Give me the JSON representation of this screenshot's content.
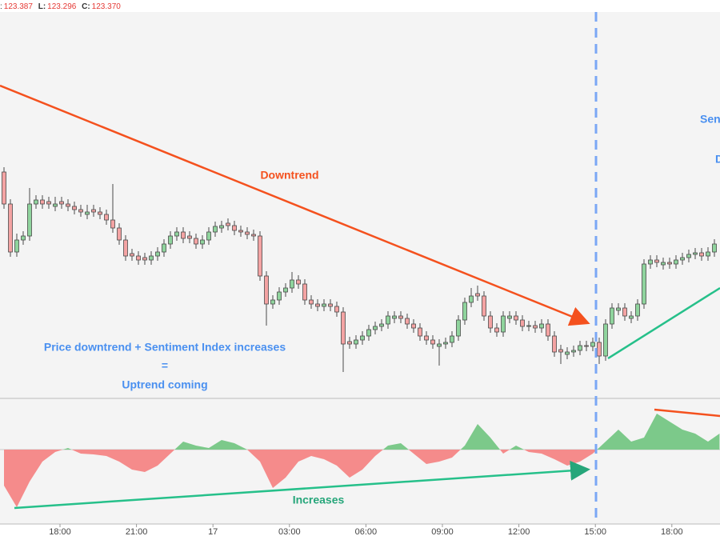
{
  "header": {
    "lead": ":",
    "h_value": "123.387",
    "l_label": "L:",
    "l_value": "123.296",
    "c_label": "C:",
    "c_value": "123.370"
  },
  "chart_data": {
    "type": "candlestick",
    "xlim": [
      -0.625,
      111.875
    ],
    "ylim": [
      0,
      482
    ],
    "y2lim": [
      -93,
      64
    ],
    "xticks": [
      {
        "value": 8.75,
        "label": "18:00"
      },
      {
        "value": 20.7,
        "label": "21:00"
      },
      {
        "value": 32.65,
        "label": "17"
      },
      {
        "value": 44.6,
        "label": "03:00"
      },
      {
        "value": 56.55,
        "label": "06:00"
      },
      {
        "value": 68.5,
        "label": "09:00"
      },
      {
        "value": 80.45,
        "label": "12:00"
      },
      {
        "value": 92.4,
        "label": "15:00"
      },
      {
        "value": 104.35,
        "label": "18:00"
      }
    ],
    "up_color": "#8fd49d",
    "down_color": "#f4a3a3",
    "edge_color": "#4a4a4a",
    "open": [
      282,
      242,
      182,
      197,
      202,
      242,
      247,
      245,
      239,
      245,
      242,
      239,
      235,
      229,
      235,
      232,
      229,
      222,
      212,
      197,
      180,
      177,
      175,
      172,
      177,
      182,
      192,
      202,
      207,
      202,
      199,
      192,
      197,
      207,
      212,
      218,
      215,
      209,
      207,
      204,
      202,
      152,
      117,
      122,
      132,
      137,
      147,
      142,
      122,
      117,
      114,
      117,
      114,
      107,
      70,
      67,
      72,
      77,
      85,
      89,
      92,
      99,
      102,
      99,
      92,
      87,
      77,
      72,
      64,
      67,
      69,
      77,
      97,
      119,
      130,
      127,
      102,
      87,
      82,
      99,
      102,
      97,
      89,
      90,
      87,
      92,
      77,
      60,
      54,
      57,
      59,
      65,
      64,
      69,
      52,
      92,
      109,
      112,
      99,
      102,
      117,
      167,
      172,
      166,
      169,
      167,
      172,
      175,
      179,
      181,
      177,
      182
    ],
    "high": [
      288,
      248,
      205,
      208,
      262,
      253,
      253,
      251,
      251,
      251,
      248,
      245,
      241,
      241,
      241,
      238,
      235,
      267,
      218,
      203,
      186,
      183,
      181,
      183,
      188,
      198,
      208,
      213,
      213,
      208,
      205,
      203,
      213,
      220,
      221,
      224,
      221,
      215,
      213,
      210,
      208,
      158,
      128,
      138,
      143,
      157,
      153,
      148,
      128,
      123,
      123,
      123,
      120,
      113,
      76,
      78,
      83,
      91,
      95,
      98,
      108,
      108,
      108,
      105,
      98,
      93,
      83,
      78,
      73,
      75,
      83,
      103,
      125,
      137,
      140,
      133,
      108,
      93,
      108,
      108,
      108,
      103,
      96,
      96,
      98,
      98,
      83,
      66,
      63,
      65,
      71,
      71,
      75,
      75,
      98,
      118,
      118,
      118,
      108,
      123,
      173,
      178,
      178,
      175,
      175,
      178,
      181,
      185,
      187,
      187,
      188,
      198
    ],
    "low": [
      236,
      176,
      176,
      191,
      196,
      236,
      236,
      236,
      233,
      236,
      233,
      229,
      226,
      223,
      226,
      223,
      216,
      206,
      191,
      171,
      171,
      166,
      166,
      166,
      171,
      176,
      186,
      196,
      193,
      193,
      186,
      186,
      191,
      201,
      206,
      209,
      203,
      201,
      198,
      196,
      146,
      90,
      111,
      116,
      126,
      131,
      136,
      116,
      111,
      108,
      108,
      108,
      101,
      32,
      61,
      61,
      66,
      71,
      79,
      83,
      86,
      93,
      93,
      86,
      81,
      71,
      66,
      61,
      40,
      61,
      63,
      71,
      91,
      113,
      121,
      96,
      81,
      76,
      76,
      93,
      91,
      83,
      83,
      81,
      81,
      71,
      51,
      42,
      48,
      51,
      53,
      58,
      58,
      42,
      46,
      86,
      103,
      96,
      93,
      96,
      111,
      161,
      163,
      160,
      161,
      161,
      166,
      169,
      173,
      171,
      171,
      176
    ],
    "close": [
      242,
      182,
      197,
      202,
      242,
      247,
      242,
      242,
      242,
      242,
      239,
      235,
      232,
      232,
      232,
      229,
      222,
      212,
      197,
      177,
      177,
      172,
      172,
      177,
      182,
      192,
      202,
      207,
      199,
      199,
      192,
      197,
      207,
      214,
      215,
      215,
      209,
      207,
      204,
      202,
      152,
      117,
      122,
      132,
      137,
      147,
      142,
      122,
      117,
      114,
      117,
      114,
      107,
      67,
      67,
      72,
      77,
      85,
      89,
      92,
      102,
      102,
      99,
      92,
      87,
      77,
      72,
      67,
      67,
      69,
      77,
      97,
      119,
      127,
      127,
      102,
      87,
      82,
      102,
      102,
      97,
      89,
      90,
      87,
      92,
      77,
      57,
      57,
      57,
      59,
      65,
      64,
      69,
      52,
      92,
      112,
      112,
      102,
      102,
      117,
      167,
      172,
      169,
      169,
      167,
      172,
      175,
      179,
      181,
      177,
      182,
      192
    ],
    "sentiment": {
      "axis": "y2",
      "up_color": "#7cc98a",
      "down_color": "#f58b8b",
      "x": [
        0,
        2,
        4,
        6,
        8,
        10,
        12,
        14,
        16,
        18,
        20,
        22,
        24,
        26,
        28,
        30,
        32,
        34,
        36,
        38,
        40,
        42,
        44,
        46,
        48,
        50,
        52,
        54,
        56,
        58,
        60,
        62,
        64,
        66,
        68,
        70,
        72,
        74,
        76,
        78,
        80,
        82,
        84,
        86,
        88,
        90,
        92,
        94,
        96,
        98,
        100,
        102,
        104,
        106,
        108,
        110,
        111.8
      ],
      "values": [
        -45,
        -72,
        -40,
        -15,
        -3,
        2,
        -5,
        -6,
        -8,
        -15,
        -25,
        -28,
        -20,
        -5,
        10,
        5,
        2,
        12,
        8,
        0,
        -15,
        -48,
        -35,
        -15,
        -8,
        -12,
        -20,
        -35,
        -25,
        -8,
        5,
        8,
        -5,
        -18,
        -15,
        -10,
        5,
        32,
        15,
        -5,
        5,
        -3,
        -5,
        -12,
        -20,
        -15,
        -5,
        10,
        25,
        10,
        15,
        45,
        35,
        25,
        20,
        10,
        20
      ]
    },
    "annotations": [
      {
        "text": "Downtrend",
        "color": "#f4511e"
      },
      {
        "text": "Price downtrend + Sentiment Index increases",
        "color": "#4a90f0"
      },
      {
        "text": "=",
        "color": "#4a90f0"
      },
      {
        "text": "Uptrend coming",
        "color": "#4a90f0"
      },
      {
        "text": "Increases",
        "color": "#26a67a"
      },
      {
        "text": "Sen",
        "color": "#4a90f0"
      },
      {
        "text": "D",
        "color": "#4a90f0"
      }
    ]
  }
}
